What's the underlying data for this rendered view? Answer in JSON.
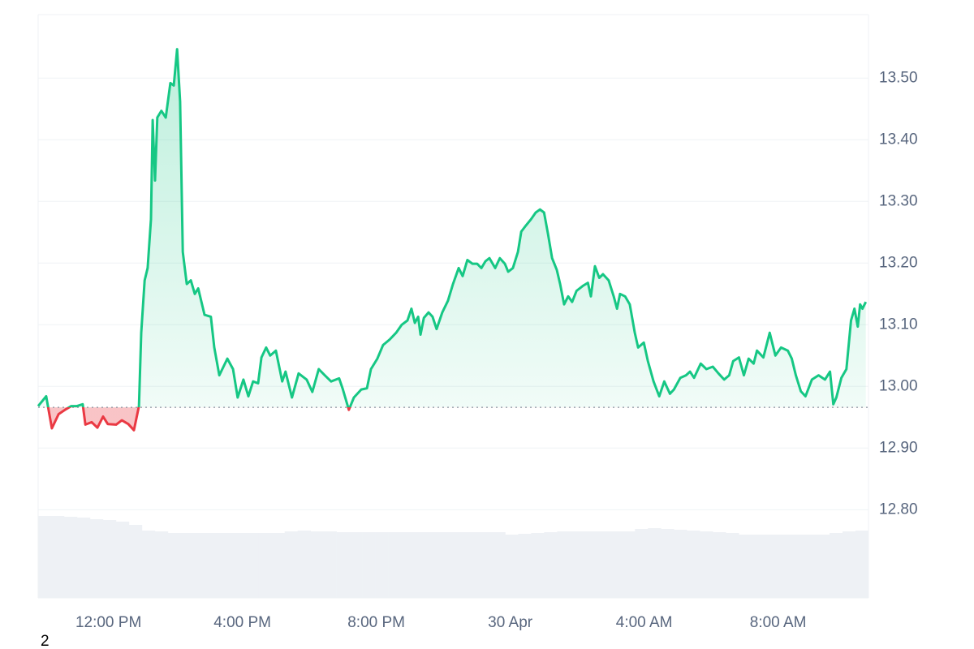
{
  "chart_data": {
    "type": "line",
    "x": [
      9.9,
      10.14,
      10.31,
      10.51,
      10.7,
      10.89,
      11.06,
      11.23,
      11.31,
      11.5,
      11.67,
      11.84,
      11.98,
      12.23,
      12.4,
      12.59,
      12.76,
      12.91,
      12.98,
      13.08,
      13.17,
      13.27,
      13.32,
      13.39,
      13.46,
      13.58,
      13.71,
      13.85,
      13.95,
      14.05,
      14.14,
      14.22,
      14.34,
      14.46,
      14.58,
      14.68,
      14.87,
      15.06,
      15.16,
      15.31,
      15.55,
      15.72,
      15.86,
      16.03,
      16.18,
      16.32,
      16.47,
      16.57,
      16.71,
      16.83,
      17.0,
      17.19,
      17.29,
      17.48,
      17.68,
      17.92,
      18.09,
      18.28,
      18.46,
      18.65,
      18.89,
      18.99,
      19.18,
      19.33,
      19.55,
      19.72,
      19.84,
      20.03,
      20.2,
      20.4,
      20.59,
      20.76,
      20.93,
      21.05,
      21.15,
      21.25,
      21.32,
      21.42,
      21.56,
      21.68,
      21.8,
      21.97,
      22.14,
      22.29,
      22.46,
      22.58,
      22.72,
      22.87,
      23.01,
      23.14,
      23.26,
      23.38,
      23.55,
      23.69,
      23.84,
      23.94,
      24.08,
      24.23,
      24.33,
      24.47,
      24.62,
      24.76,
      24.89,
      25.01,
      25.13,
      25.25,
      25.39,
      25.49,
      25.61,
      25.73,
      25.85,
      25.98,
      26.17,
      26.32,
      26.41,
      26.53,
      26.66,
      26.77,
      26.94,
      27.09,
      27.19,
      27.28,
      27.43,
      27.57,
      27.72,
      27.82,
      27.99,
      28.11,
      28.28,
      28.45,
      28.6,
      28.77,
      28.89,
      29.08,
      29.25,
      29.37,
      29.49,
      29.69,
      29.86,
      30.05,
      30.22,
      30.39,
      30.54,
      30.66,
      30.83,
      30.98,
      31.12,
      31.27,
      31.37,
      31.56,
      31.75,
      31.92,
      32.09,
      32.29,
      32.41,
      32.53,
      32.68,
      32.82,
      33.01,
      33.21,
      33.4,
      33.55,
      33.65,
      33.74,
      33.89,
      34.04,
      34.18,
      34.28,
      34.38,
      34.45,
      34.52,
      34.62
    ],
    "values": [
      12.968,
      12.984,
      12.932,
      12.955,
      12.962,
      12.968,
      12.968,
      12.971,
      12.938,
      12.942,
      12.933,
      12.951,
      12.939,
      12.938,
      12.945,
      12.939,
      12.929,
      12.968,
      13.087,
      13.172,
      13.192,
      13.271,
      13.432,
      13.334,
      13.436,
      13.447,
      13.436,
      13.492,
      13.488,
      13.547,
      13.462,
      13.218,
      13.166,
      13.172,
      13.15,
      13.159,
      13.116,
      13.113,
      13.063,
      13.018,
      13.045,
      13.028,
      12.982,
      13.011,
      12.984,
      13.008,
      13.005,
      13.047,
      13.063,
      13.05,
      13.058,
      13.008,
      13.024,
      12.982,
      13.021,
      13.011,
      12.991,
      13.028,
      13.018,
      13.008,
      13.013,
      12.997,
      12.962,
      12.982,
      12.995,
      12.997,
      13.028,
      13.045,
      13.067,
      13.076,
      13.087,
      13.1,
      13.107,
      13.126,
      13.103,
      13.113,
      13.084,
      13.111,
      13.12,
      13.113,
      13.093,
      13.12,
      13.139,
      13.166,
      13.192,
      13.179,
      13.205,
      13.199,
      13.199,
      13.192,
      13.203,
      13.208,
      13.192,
      13.208,
      13.199,
      13.186,
      13.192,
      13.218,
      13.251,
      13.261,
      13.271,
      13.282,
      13.287,
      13.282,
      13.247,
      13.208,
      13.189,
      13.166,
      13.133,
      13.146,
      13.137,
      13.155,
      13.163,
      13.168,
      13.146,
      13.195,
      13.176,
      13.182,
      13.172,
      13.146,
      13.126,
      13.15,
      13.146,
      13.133,
      13.087,
      13.063,
      13.071,
      13.041,
      13.008,
      12.984,
      13.008,
      12.988,
      12.995,
      13.014,
      13.018,
      13.024,
      13.014,
      13.037,
      13.028,
      13.032,
      13.021,
      13.011,
      13.018,
      13.041,
      13.047,
      13.018,
      13.045,
      13.037,
      13.058,
      13.047,
      13.087,
      13.05,
      13.063,
      13.058,
      13.045,
      13.018,
      12.992,
      12.984,
      13.011,
      13.018,
      13.011,
      13.024,
      12.971,
      12.982,
      13.014,
      13.028,
      13.107,
      13.126,
      13.097,
      13.133,
      13.126,
      13.137
    ],
    "baseline": 12.966,
    "up_color": "#16c784",
    "down_color": "#ea3943",
    "xlim": [
      9.9,
      34.7
    ],
    "xticks": [
      {
        "value": 12,
        "label": "12:00 PM"
      },
      {
        "value": 16,
        "label": "4:00 PM"
      },
      {
        "value": 20,
        "label": "8:00 PM"
      },
      {
        "value": 24,
        "label": "30 Apr"
      },
      {
        "value": 28,
        "label": "4:00 AM"
      },
      {
        "value": 32,
        "label": "8:00 AM"
      }
    ],
    "ylim": [
      12.657,
      13.603
    ],
    "yticks": [
      {
        "value": 12.8,
        "label": "12.80"
      },
      {
        "value": 12.9,
        "label": "12.90"
      },
      {
        "value": 13.0,
        "label": "13.00"
      },
      {
        "value": 13.1,
        "label": "13.10"
      },
      {
        "value": 13.2,
        "label": "13.20"
      },
      {
        "value": 13.3,
        "label": "13.30"
      },
      {
        "value": 13.4,
        "label": "13.40"
      },
      {
        "value": 13.5,
        "label": "13.50"
      }
    ],
    "grid": true,
    "volume": {
      "color": "#eef1f5",
      "ylim": [
        0,
        110
      ],
      "values": [
        101,
        101,
        100,
        99,
        97,
        96,
        94,
        90,
        83,
        82,
        80,
        80,
        80,
        80,
        80,
        80,
        80,
        80,
        80,
        82,
        83,
        82,
        82,
        81,
        81,
        81,
        81,
        81,
        81,
        81,
        81,
        81,
        81,
        81,
        81,
        81,
        78,
        79,
        80,
        81,
        82,
        82,
        82,
        82,
        82,
        82,
        85,
        86,
        85,
        84,
        83,
        82,
        81,
        80,
        78,
        78,
        78,
        78,
        78,
        78,
        78,
        80,
        82,
        83
      ]
    },
    "footer_note": "2"
  }
}
